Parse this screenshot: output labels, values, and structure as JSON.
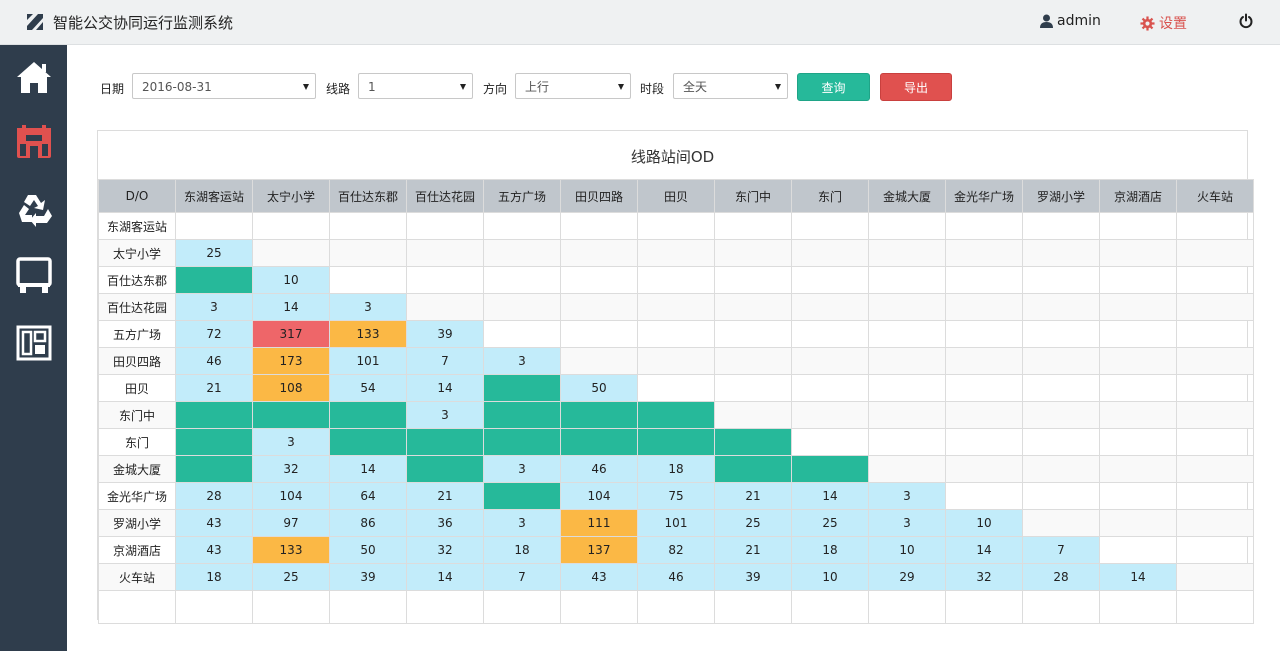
{
  "header": {
    "app_title": "智能公交协同运行监测系统",
    "user_label": "admin",
    "settings_label": "设置"
  },
  "sidebar": {
    "items": [
      {
        "name": "home",
        "icon": "home-icon"
      },
      {
        "name": "station",
        "icon": "station-icon"
      },
      {
        "name": "recycle",
        "icon": "recycle-icon"
      },
      {
        "name": "bus",
        "icon": "bus-icon"
      },
      {
        "name": "dashboard",
        "icon": "dashboard-icon"
      }
    ]
  },
  "filters": {
    "date_label": "日期",
    "date_value": "2016-08-31",
    "line_label": "线路",
    "line_value": "1",
    "direction_label": "方向",
    "direction_value": "上行",
    "period_label": "时段",
    "period_value": "全天",
    "query_label": "查询",
    "export_label": "导出"
  },
  "colors": {
    "light_blue": "#c2ecfa",
    "green": "#26b99a",
    "orange": "#fbb845",
    "red": "#ee6669"
  },
  "od_table": {
    "title": "线路站间OD",
    "corner_label": "D/O",
    "stations": [
      "东湖客运站",
      "太宁小学",
      "百仕达东郡",
      "百仕达花园",
      "五方广场",
      "田贝四路",
      "田贝",
      "东门中",
      "东门",
      "金城大厦",
      "金光华广场",
      "罗湖小学",
      "京湖酒店",
      "火车站"
    ],
    "rows": [
      {
        "label": "东湖客运站",
        "cells": []
      },
      {
        "label": "太宁小学",
        "cells": [
          [
            "b",
            "25"
          ]
        ]
      },
      {
        "label": "百仕达东郡",
        "cells": [
          [
            "g",
            ""
          ],
          [
            "b",
            "10"
          ]
        ]
      },
      {
        "label": "百仕达花园",
        "cells": [
          [
            "b",
            "3"
          ],
          [
            "b",
            "14"
          ],
          [
            "b",
            "3"
          ]
        ]
      },
      {
        "label": "五方广场",
        "cells": [
          [
            "b",
            "72"
          ],
          [
            "r",
            "317"
          ],
          [
            "o",
            "133"
          ],
          [
            "b",
            "39"
          ]
        ]
      },
      {
        "label": "田贝四路",
        "cells": [
          [
            "b",
            "46"
          ],
          [
            "o",
            "173"
          ],
          [
            "b",
            "101"
          ],
          [
            "b",
            "7"
          ],
          [
            "b",
            "3"
          ]
        ]
      },
      {
        "label": "田贝",
        "cells": [
          [
            "b",
            "21"
          ],
          [
            "o",
            "108"
          ],
          [
            "b",
            "54"
          ],
          [
            "b",
            "14"
          ],
          [
            "g",
            ""
          ],
          [
            "b",
            "50"
          ]
        ]
      },
      {
        "label": "东门中",
        "cells": [
          [
            "g",
            ""
          ],
          [
            "g",
            ""
          ],
          [
            "g",
            ""
          ],
          [
            "b",
            "3"
          ],
          [
            "g",
            ""
          ],
          [
            "g",
            ""
          ],
          [
            "g",
            ""
          ]
        ]
      },
      {
        "label": "东门",
        "cells": [
          [
            "g",
            ""
          ],
          [
            "b",
            "3"
          ],
          [
            "g",
            ""
          ],
          [
            "g",
            ""
          ],
          [
            "g",
            ""
          ],
          [
            "g",
            ""
          ],
          [
            "g",
            ""
          ],
          [
            "g",
            ""
          ]
        ]
      },
      {
        "label": "金城大厦",
        "cells": [
          [
            "g",
            ""
          ],
          [
            "b",
            "32"
          ],
          [
            "b",
            "14"
          ],
          [
            "g",
            ""
          ],
          [
            "b",
            "3"
          ],
          [
            "b",
            "46"
          ],
          [
            "b",
            "18"
          ],
          [
            "g",
            ""
          ],
          [
            "g",
            ""
          ]
        ]
      },
      {
        "label": "金光华广场",
        "cells": [
          [
            "b",
            "28"
          ],
          [
            "b",
            "104"
          ],
          [
            "b",
            "64"
          ],
          [
            "b",
            "21"
          ],
          [
            "g",
            ""
          ],
          [
            "b",
            "104"
          ],
          [
            "b",
            "75"
          ],
          [
            "b",
            "21"
          ],
          [
            "b",
            "14"
          ],
          [
            "b",
            "3"
          ]
        ]
      },
      {
        "label": "罗湖小学",
        "cells": [
          [
            "b",
            "43"
          ],
          [
            "b",
            "97"
          ],
          [
            "b",
            "86"
          ],
          [
            "b",
            "36"
          ],
          [
            "b",
            "3"
          ],
          [
            "o",
            "111"
          ],
          [
            "b",
            "101"
          ],
          [
            "b",
            "25"
          ],
          [
            "b",
            "25"
          ],
          [
            "b",
            "3"
          ],
          [
            "b",
            "10"
          ]
        ]
      },
      {
        "label": "京湖酒店",
        "cells": [
          [
            "b",
            "43"
          ],
          [
            "o",
            "133"
          ],
          [
            "b",
            "50"
          ],
          [
            "b",
            "32"
          ],
          [
            "b",
            "18"
          ],
          [
            "o",
            "137"
          ],
          [
            "b",
            "82"
          ],
          [
            "b",
            "21"
          ],
          [
            "b",
            "18"
          ],
          [
            "b",
            "10"
          ],
          [
            "b",
            "14"
          ],
          [
            "b",
            "7"
          ]
        ]
      },
      {
        "label": "火车站",
        "cells": [
          [
            "b",
            "18"
          ],
          [
            "b",
            "25"
          ],
          [
            "b",
            "39"
          ],
          [
            "b",
            "14"
          ],
          [
            "b",
            "7"
          ],
          [
            "b",
            "43"
          ],
          [
            "b",
            "46"
          ],
          [
            "b",
            "39"
          ],
          [
            "b",
            "10"
          ],
          [
            "b",
            "29"
          ],
          [
            "b",
            "32"
          ],
          [
            "b",
            "28"
          ],
          [
            "b",
            "14"
          ]
        ]
      }
    ]
  }
}
